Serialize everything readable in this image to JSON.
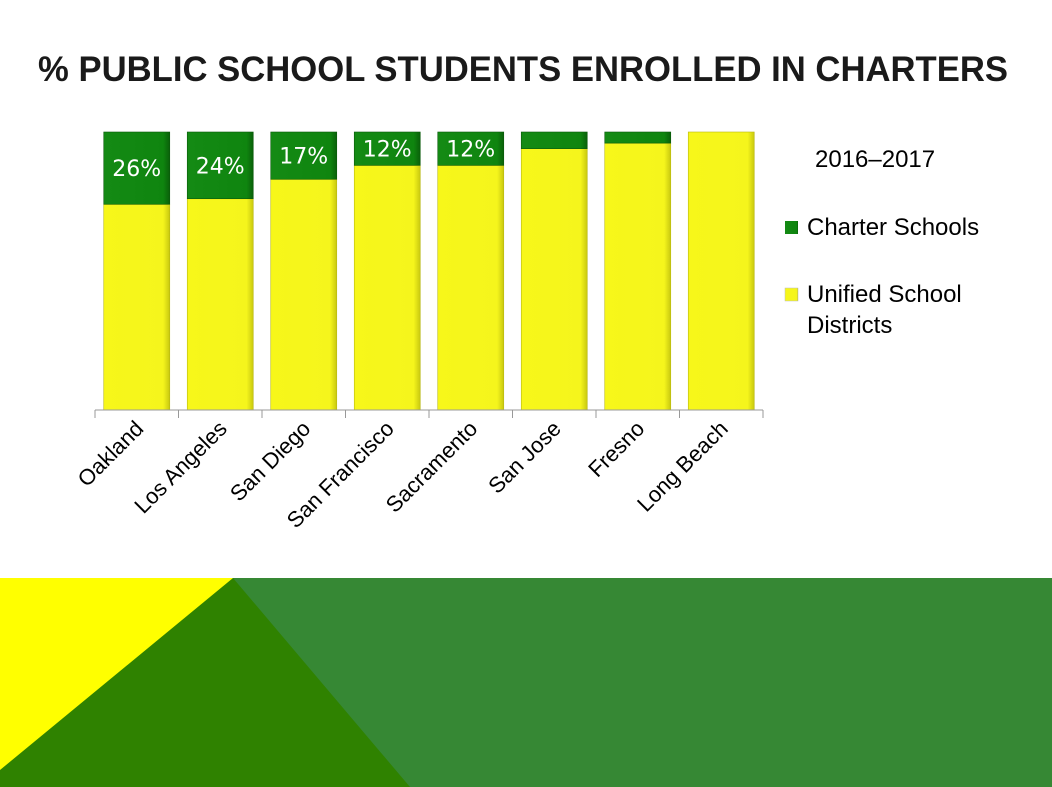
{
  "slide": {
    "title": "% PUBLIC SCHOOL STUDENTS ENROLLED IN CHARTERS",
    "colors": {
      "yellow": "#ffff00",
      "dark_green": "#2f8200",
      "green": "#368834"
    }
  },
  "chart_data": {
    "type": "bar",
    "stacked": "100%",
    "title": "",
    "subtitle": "2016–2017",
    "xlabel": "",
    "ylabel": "",
    "ylim": [
      0,
      100
    ],
    "grid": false,
    "legend_placement": "right",
    "categories": [
      "Oakland",
      "Los Angeles",
      "San Diego",
      "San Francisco",
      "Sacramento",
      "San Jose",
      "Fresno",
      "Long Beach"
    ],
    "series": [
      {
        "name": "Charter Schools",
        "color": "#118a11",
        "values": [
          26,
          24,
          17,
          12,
          12,
          6,
          4,
          0
        ],
        "data_labels": [
          "26%",
          "24%",
          "17%",
          "12%",
          "12%",
          "",
          "",
          ""
        ]
      },
      {
        "name": "Unified School Districts",
        "color": "#f5f519",
        "values": [
          74,
          76,
          83,
          88,
          88,
          94,
          96,
          100
        ]
      }
    ],
    "legend_lines": {
      "unified": [
        "Unified School",
        "Districts"
      ]
    }
  }
}
